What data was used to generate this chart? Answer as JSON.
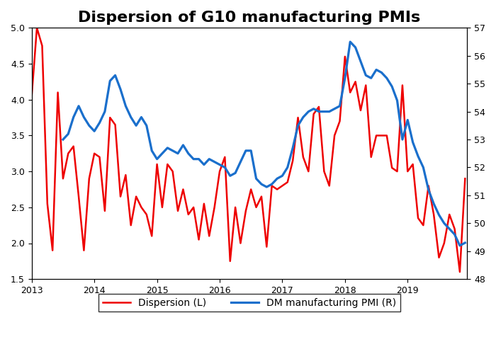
{
  "title": "Dispersion of G10 manufacturing PMIs",
  "title_fontsize": 16,
  "ylim_left": [
    1.5,
    5.0
  ],
  "ylim_right": [
    48,
    57
  ],
  "yticks_left": [
    1.5,
    2.0,
    2.5,
    3.0,
    3.5,
    4.0,
    4.5,
    5.0
  ],
  "yticks_right": [
    48,
    49,
    50,
    51,
    52,
    53,
    54,
    55,
    56,
    57
  ],
  "line_red_color": "#ee0000",
  "line_blue_color": "#1a6fcc",
  "line_width": 1.8,
  "legend_label_red": "Dispersion (L)",
  "legend_label_blue": "DM manufacturing PMI (R)",
  "background_color": "#ffffff",
  "x_red": [
    2013.0,
    2013.083,
    2013.167,
    2013.25,
    2013.333,
    2013.417,
    2013.5,
    2013.583,
    2013.667,
    2013.75,
    2013.833,
    2013.917,
    2014.0,
    2014.083,
    2014.167,
    2014.25,
    2014.333,
    2014.417,
    2014.5,
    2014.583,
    2014.667,
    2014.75,
    2014.833,
    2014.917,
    2015.0,
    2015.083,
    2015.167,
    2015.25,
    2015.333,
    2015.417,
    2015.5,
    2015.583,
    2015.667,
    2015.75,
    2015.833,
    2015.917,
    2016.0,
    2016.083,
    2016.167,
    2016.25,
    2016.333,
    2016.417,
    2016.5,
    2016.583,
    2016.667,
    2016.75,
    2016.833,
    2016.917,
    2017.0,
    2017.083,
    2017.167,
    2017.25,
    2017.333,
    2017.417,
    2017.5,
    2017.583,
    2017.667,
    2017.75,
    2017.833,
    2017.917,
    2018.0,
    2018.083,
    2018.167,
    2018.25,
    2018.333,
    2018.417,
    2018.5,
    2018.583,
    2018.667,
    2018.75,
    2018.833,
    2018.917,
    2019.0,
    2019.083,
    2019.167,
    2019.25,
    2019.333,
    2019.417,
    2019.5,
    2019.583,
    2019.667,
    2019.75,
    2019.833,
    2019.917
  ],
  "y_red": [
    4.05,
    5.0,
    4.75,
    2.55,
    1.9,
    4.1,
    2.9,
    3.25,
    3.35,
    2.65,
    1.9,
    2.9,
    3.25,
    3.2,
    2.45,
    3.75,
    3.65,
    2.65,
    2.95,
    2.25,
    2.65,
    2.5,
    2.4,
    2.1,
    3.1,
    2.5,
    3.1,
    3.0,
    2.45,
    2.75,
    2.4,
    2.5,
    2.05,
    2.55,
    2.1,
    2.5,
    3.0,
    3.2,
    1.75,
    2.5,
    2.0,
    2.45,
    2.75,
    2.5,
    2.65,
    1.95,
    2.8,
    2.75,
    2.8,
    2.85,
    3.15,
    3.75,
    3.2,
    3.0,
    3.8,
    3.9,
    3.0,
    2.8,
    3.5,
    3.7,
    4.6,
    4.1,
    4.25,
    3.85,
    4.2,
    3.2,
    3.5,
    3.5,
    3.5,
    3.05,
    3.0,
    4.2,
    3.0,
    3.1,
    2.35,
    2.25,
    2.8,
    2.4,
    1.8,
    2.0,
    2.4,
    2.2,
    1.6,
    2.9
  ],
  "x_blue": [
    2013.5,
    2013.583,
    2013.667,
    2013.75,
    2013.833,
    2013.917,
    2014.0,
    2014.083,
    2014.167,
    2014.25,
    2014.333,
    2014.417,
    2014.5,
    2014.583,
    2014.667,
    2014.75,
    2014.833,
    2014.917,
    2015.0,
    2015.083,
    2015.167,
    2015.25,
    2015.333,
    2015.417,
    2015.5,
    2015.583,
    2015.667,
    2015.75,
    2015.833,
    2015.917,
    2016.0,
    2016.083,
    2016.167,
    2016.25,
    2016.333,
    2016.417,
    2016.5,
    2016.583,
    2016.667,
    2016.75,
    2016.833,
    2016.917,
    2017.0,
    2017.083,
    2017.167,
    2017.25,
    2017.333,
    2017.417,
    2017.5,
    2017.583,
    2017.667,
    2017.75,
    2017.833,
    2017.917,
    2018.0,
    2018.083,
    2018.167,
    2018.25,
    2018.333,
    2018.417,
    2018.5,
    2018.583,
    2018.667,
    2018.75,
    2018.833,
    2018.917,
    2019.0,
    2019.083,
    2019.167,
    2019.25,
    2019.333,
    2019.417,
    2019.5,
    2019.583,
    2019.667,
    2019.75,
    2019.833,
    2019.917
  ],
  "y_blue": [
    53.0,
    53.2,
    53.8,
    54.2,
    53.8,
    53.5,
    53.3,
    53.6,
    54.0,
    55.1,
    55.3,
    54.8,
    54.2,
    53.8,
    53.5,
    53.8,
    53.5,
    52.6,
    52.3,
    52.5,
    52.7,
    52.6,
    52.5,
    52.8,
    52.5,
    52.3,
    52.3,
    52.1,
    52.3,
    52.2,
    52.1,
    52.0,
    51.7,
    51.8,
    52.2,
    52.6,
    52.6,
    51.6,
    51.4,
    51.3,
    51.4,
    51.6,
    51.7,
    52.0,
    52.7,
    53.5,
    53.8,
    54.0,
    54.1,
    54.0,
    54.0,
    54.0,
    54.1,
    54.2,
    55.2,
    56.5,
    56.3,
    55.8,
    55.3,
    55.2,
    55.5,
    55.4,
    55.2,
    54.9,
    54.4,
    53.0,
    53.7,
    52.9,
    52.4,
    52.0,
    51.2,
    50.7,
    50.3,
    50.0,
    49.8,
    49.6,
    49.2,
    49.3
  ]
}
